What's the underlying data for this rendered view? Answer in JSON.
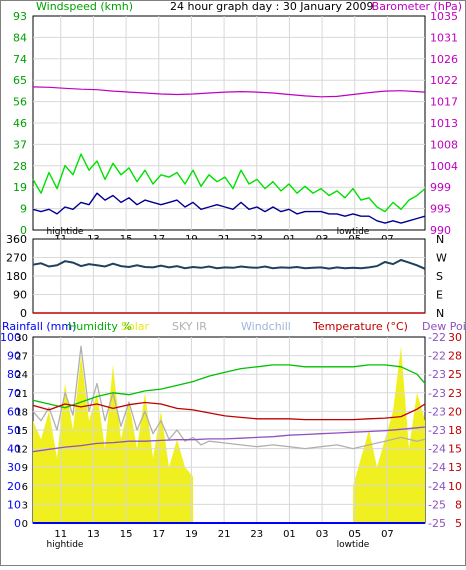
{
  "colors": {
    "wind": "#00e000",
    "gust": "#00e000",
    "wind_avg": "#000090",
    "baro": "#c000c0",
    "dir": "#204060",
    "rain": "#0000ff",
    "humidity": "#00c000",
    "solar": "#f0f020",
    "sky_ir": "#b0b0b0",
    "windchill": "#9fb6d8",
    "temperature": "#c00000",
    "dewpoint": "#9050c0",
    "grid": "#d8d8d8",
    "axis_left": "#00a000",
    "axis_right": "#c000c0"
  },
  "chart_data": [
    {
      "type": "line",
      "title": "24 hour graph day : 30 January 2009",
      "left_label": "Windspeed (kmh)",
      "right_label": "Barometer (hPa)",
      "left_ticks": [
        "93",
        "84",
        "74",
        "65",
        "56",
        "46",
        "37",
        "28",
        "19",
        "9",
        "0"
      ],
      "right_ticks": [
        "1035",
        "1031",
        "1026",
        "1022",
        "1017",
        "1013",
        "1008",
        "1004",
        "999",
        "995",
        "990"
      ],
      "x_ticks": [
        "11",
        "13",
        "15",
        "17",
        "19",
        "21",
        "23",
        "01",
        "03",
        "05",
        "07"
      ],
      "tide_labels": [
        {
          "text": "hightide",
          "at": "12"
        },
        {
          "text": "lowtide",
          "at": "06"
        }
      ],
      "x_range": [
        10,
        34.5
      ],
      "ylim_left": [
        0,
        93
      ],
      "ylim_right": [
        990,
        1035
      ],
      "series": [
        {
          "name": "Windspeed",
          "axis": "left",
          "color_key": "wind",
          "x": [
            10,
            10.5,
            11,
            11.5,
            12,
            12.5,
            13,
            13.5,
            14,
            14.5,
            15,
            15.5,
            16,
            16.5,
            17,
            17.5,
            18,
            18.5,
            19,
            19.5,
            20,
            20.5,
            21,
            21.5,
            22,
            22.5,
            23,
            23.5,
            24,
            24.5,
            25,
            25.5,
            26,
            26.5,
            27,
            27.5,
            28,
            28.5,
            29,
            29.5,
            30,
            30.5,
            31,
            31.5,
            32,
            32.5,
            33,
            33.5,
            34,
            34.5
          ],
          "y": [
            22,
            16,
            25,
            18,
            28,
            24,
            33,
            26,
            30,
            22,
            29,
            24,
            27,
            21,
            26,
            20,
            24,
            23,
            25,
            20,
            26,
            19,
            24,
            21,
            23,
            18,
            26,
            20,
            22,
            18,
            21,
            17,
            20,
            16,
            19,
            16,
            18,
            15,
            17,
            14,
            18,
            13,
            14,
            10,
            8,
            12,
            9,
            13,
            15,
            18
          ]
        },
        {
          "name": "Wind average",
          "axis": "left",
          "color_key": "wind_avg",
          "x": [
            10,
            10.5,
            11,
            11.5,
            12,
            12.5,
            13,
            13.5,
            14,
            14.5,
            15,
            15.5,
            16,
            16.5,
            17,
            17.5,
            18,
            18.5,
            19,
            19.5,
            20,
            20.5,
            21,
            21.5,
            22,
            22.5,
            23,
            23.5,
            24,
            24.5,
            25,
            25.5,
            26,
            26.5,
            27,
            27.5,
            28,
            28.5,
            29,
            29.5,
            30,
            30.5,
            31,
            31.5,
            32,
            32.5,
            33,
            33.5,
            34,
            34.5
          ],
          "y": [
            9,
            8,
            9,
            7,
            10,
            9,
            12,
            11,
            16,
            13,
            15,
            12,
            14,
            11,
            13,
            12,
            11,
            12,
            13,
            10,
            12,
            9,
            10,
            11,
            10,
            9,
            12,
            9,
            10,
            8,
            10,
            8,
            9,
            7,
            8,
            8,
            8,
            7,
            7,
            6,
            7,
            6,
            6,
            4,
            3,
            4,
            3,
            4,
            5,
            6
          ]
        },
        {
          "name": "Barometer",
          "axis": "right",
          "color_key": "baro",
          "x": [
            10,
            11,
            12,
            13,
            14,
            15,
            16,
            17,
            18,
            19,
            20,
            21,
            22,
            23,
            24,
            25,
            26,
            27,
            28,
            29,
            30,
            31,
            32,
            33,
            34,
            34.5
          ],
          "y": [
            1020.1,
            1020.0,
            1019.8,
            1019.6,
            1019.5,
            1019.2,
            1019.0,
            1018.8,
            1018.6,
            1018.5,
            1018.6,
            1018.8,
            1019.0,
            1019.1,
            1019.0,
            1018.8,
            1018.5,
            1018.2,
            1018.0,
            1018.1,
            1018.5,
            1018.9,
            1019.2,
            1019.3,
            1019.1,
            1019.0
          ]
        }
      ]
    },
    {
      "type": "line",
      "left_ticks": [
        "360",
        "270",
        "180",
        "90",
        "0"
      ],
      "right_ticks": [
        "N",
        "W",
        "S",
        "E",
        "N"
      ],
      "x_range": [
        10,
        34.5
      ],
      "ylim": [
        0,
        360
      ],
      "series": [
        {
          "name": "Wind direction",
          "color_key": "dir",
          "x": [
            10,
            10.5,
            11,
            11.5,
            12,
            12.5,
            13,
            13.5,
            14,
            14.5,
            15,
            15.5,
            16,
            16.5,
            17,
            17.5,
            18,
            18.5,
            19,
            19.5,
            20,
            20.5,
            21,
            21.5,
            22,
            22.5,
            23,
            23.5,
            24,
            24.5,
            25,
            25.5,
            26,
            26.5,
            27,
            27.5,
            28,
            28.5,
            29,
            29.5,
            30,
            30.5,
            31,
            31.5,
            32,
            32.5,
            33,
            33.5,
            34,
            34.5
          ],
          "y": [
            235,
            242,
            226,
            232,
            252,
            245,
            228,
            238,
            232,
            226,
            240,
            228,
            224,
            232,
            224,
            222,
            230,
            222,
            228,
            218,
            224,
            220,
            226,
            218,
            222,
            220,
            226,
            222,
            220,
            226,
            218,
            222,
            220,
            224,
            218,
            220,
            222,
            216,
            222,
            218,
            220,
            218,
            222,
            228,
            248,
            238,
            258,
            245,
            232,
            215
          ]
        },
        {
          "name": "Rain zero",
          "color_key": "temperature",
          "x": [
            10,
            34.5
          ],
          "y": [
            0,
            0
          ]
        }
      ]
    },
    {
      "type": "line",
      "legend": [
        "Rainfall (mm)",
        "Humidity %",
        "Solar",
        "SKY IR",
        "Windchill",
        "Temperature (°C)",
        "Dew Point"
      ],
      "rain_ticks": [
        "100",
        "90",
        "80",
        "70",
        "60",
        "50",
        "40",
        "30",
        "20",
        "10",
        "0"
      ],
      "humidity_ticks": [
        "30",
        "27",
        "24",
        "21",
        "18",
        "15",
        "12",
        "9",
        "6",
        "3",
        "0"
      ],
      "sky_ticks": [
        "-22",
        "-22",
        "-23",
        "-23",
        "-23",
        "-23",
        "-24",
        "-24",
        "-24",
        "-25",
        "-25"
      ],
      "temp_ticks": [
        "30",
        "28",
        "25",
        "23",
        "20",
        "18",
        "15",
        "13",
        "10",
        "8",
        "5"
      ],
      "x_ticks": [
        "11",
        "13",
        "15",
        "17",
        "19",
        "21",
        "23",
        "01",
        "03",
        "05",
        "07"
      ],
      "tide_labels": [
        {
          "text": "hightide",
          "at": "12"
        },
        {
          "text": "lowtide",
          "at": "06"
        }
      ],
      "x_range": [
        10,
        34.5
      ],
      "ylim_temp": [
        5,
        30
      ],
      "ylim_pct": [
        0,
        100
      ],
      "series": [
        {
          "name": "Solar",
          "color_key": "solar",
          "unit": "pct",
          "x": [
            10,
            10.5,
            11,
            11.5,
            12,
            12.5,
            13,
            13.5,
            14,
            14.5,
            15,
            15.5,
            16,
            16.5,
            17,
            17.5,
            18,
            18.5,
            19,
            19.5,
            20,
            20.01,
            30,
            30.01,
            30.5,
            31,
            31.5,
            32,
            32.5,
            33,
            33.5,
            34,
            34.5
          ],
          "y": [
            55,
            45,
            60,
            35,
            75,
            50,
            90,
            55,
            70,
            40,
            85,
            45,
            65,
            40,
            70,
            35,
            60,
            30,
            45,
            30,
            25,
            0,
            0,
            20,
            35,
            50,
            30,
            45,
            60,
            95,
            40,
            70,
            55
          ]
        },
        {
          "name": "SKY IR",
          "color_key": "sky_ir",
          "unit": "pct",
          "x": [
            10,
            10.5,
            11,
            11.5,
            12,
            12.5,
            13,
            13.5,
            14,
            14.5,
            15,
            15.5,
            16,
            16.5,
            17,
            17.5,
            18,
            18.5,
            19,
            19.5,
            20,
            20.5,
            21,
            22,
            23,
            24,
            25,
            26,
            27,
            28,
            29,
            30,
            31,
            32,
            33,
            34,
            34.5
          ],
          "y": [
            60,
            55,
            62,
            50,
            70,
            58,
            95,
            60,
            75,
            55,
            70,
            52,
            65,
            50,
            60,
            48,
            55,
            45,
            50,
            44,
            46,
            42,
            44,
            43,
            42,
            41,
            42,
            41,
            40,
            41,
            42,
            40,
            42,
            44,
            46,
            44,
            45
          ]
        },
        {
          "name": "Humidity",
          "color_key": "humidity",
          "unit": "pct",
          "x": [
            10,
            11,
            12,
            13,
            14,
            15,
            16,
            17,
            18,
            19,
            20,
            21,
            22,
            23,
            24,
            25,
            26,
            27,
            28,
            29,
            30,
            31,
            32,
            33,
            34,
            34.5
          ],
          "y": [
            66,
            64,
            62,
            65,
            68,
            70,
            69,
            71,
            72,
            74,
            76,
            79,
            81,
            83,
            84,
            85,
            85,
            84,
            84,
            84,
            84,
            85,
            85,
            84,
            80,
            75
          ]
        },
        {
          "name": "Temperature",
          "color_key": "temperature",
          "unit": "temp",
          "x": [
            10,
            11,
            12,
            13,
            14,
            15,
            16,
            17,
            18,
            19,
            20,
            21,
            22,
            23,
            24,
            25,
            26,
            27,
            28,
            29,
            30,
            31,
            32,
            33,
            34,
            34.5
          ],
          "y": [
            20.8,
            20.2,
            21.0,
            20.6,
            21.0,
            20.4,
            20.9,
            21.2,
            21.0,
            20.4,
            20.2,
            19.8,
            19.4,
            19.2,
            19.0,
            19.0,
            19.0,
            18.9,
            18.9,
            18.9,
            18.9,
            19.0,
            19.1,
            19.3,
            20.3,
            21.0
          ]
        },
        {
          "name": "Dew Point",
          "color_key": "dewpoint",
          "unit": "temp",
          "x": [
            10,
            11,
            12,
            13,
            14,
            15,
            16,
            17,
            18,
            19,
            20,
            21,
            22,
            23,
            24,
            25,
            26,
            27,
            28,
            29,
            30,
            31,
            32,
            33,
            34,
            34.5
          ],
          "y": [
            14.6,
            14.9,
            15.2,
            15.4,
            15.7,
            15.8,
            16.0,
            16.0,
            16.1,
            16.2,
            16.2,
            16.3,
            16.3,
            16.4,
            16.5,
            16.6,
            16.8,
            16.9,
            17.0,
            17.1,
            17.2,
            17.3,
            17.4,
            17.6,
            17.8,
            17.9
          ]
        },
        {
          "name": "Rainfall",
          "color_key": "rain",
          "unit": "pct",
          "x": [
            10,
            34.5
          ],
          "y": [
            0,
            0
          ]
        }
      ]
    }
  ]
}
